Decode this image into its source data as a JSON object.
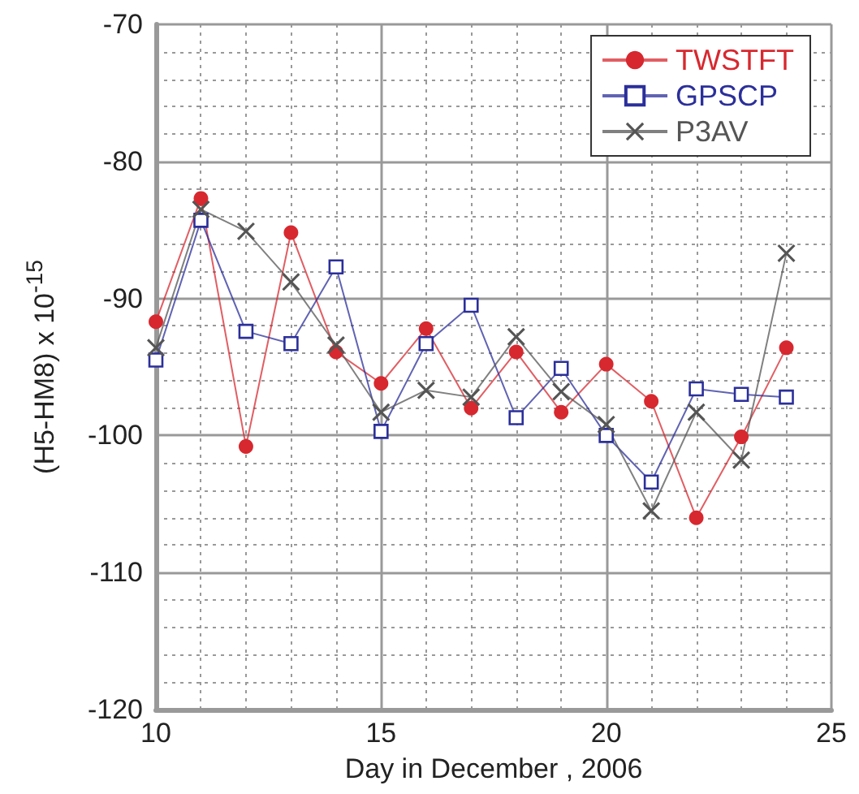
{
  "chart_data": {
    "type": "line",
    "xlabel": "Day in December , 2006",
    "ylabel": "(H5-HM8) x 10$^{-15}$",
    "x": [
      10,
      11,
      12,
      13,
      14,
      15,
      16,
      17,
      18,
      19,
      20,
      21,
      22,
      23,
      24
    ],
    "series": [
      {
        "name": "TWSTFT",
        "color": "#d7282f",
        "marker": "circle",
        "values": [
          -91.7,
          -82.7,
          -100.8,
          -85.2,
          -93.9,
          -96.2,
          -92.2,
          -98.0,
          -93.9,
          -98.3,
          -94.8,
          -97.5,
          -106.0,
          -100.1,
          -93.6
        ]
      },
      {
        "name": "GPSCP",
        "color": "#2b2f9a",
        "marker": "square",
        "values": [
          -94.5,
          -84.3,
          -92.4,
          -93.3,
          -87.7,
          -99.7,
          -93.3,
          -90.5,
          -98.7,
          -95.1,
          -100.0,
          -103.4,
          -96.6,
          -97.0,
          -97.2
        ]
      },
      {
        "name": "P3AV",
        "color": "#555555",
        "marker": "cross",
        "values": [
          -93.6,
          -83.5,
          -85.1,
          -88.8,
          -93.4,
          -98.3,
          -96.7,
          -97.2,
          -92.8,
          -96.8,
          -99.2,
          -105.5,
          -98.3,
          -101.8,
          -86.7
        ]
      }
    ],
    "xlim": [
      10,
      25
    ],
    "xticks": [
      10,
      15,
      20,
      25
    ],
    "ylim": [
      -120,
      -70
    ],
    "yticks": [
      -120,
      -110,
      -100,
      -90,
      -80,
      -70
    ],
    "grid": true,
    "legend": "top right",
    "line_style": "solid"
  }
}
